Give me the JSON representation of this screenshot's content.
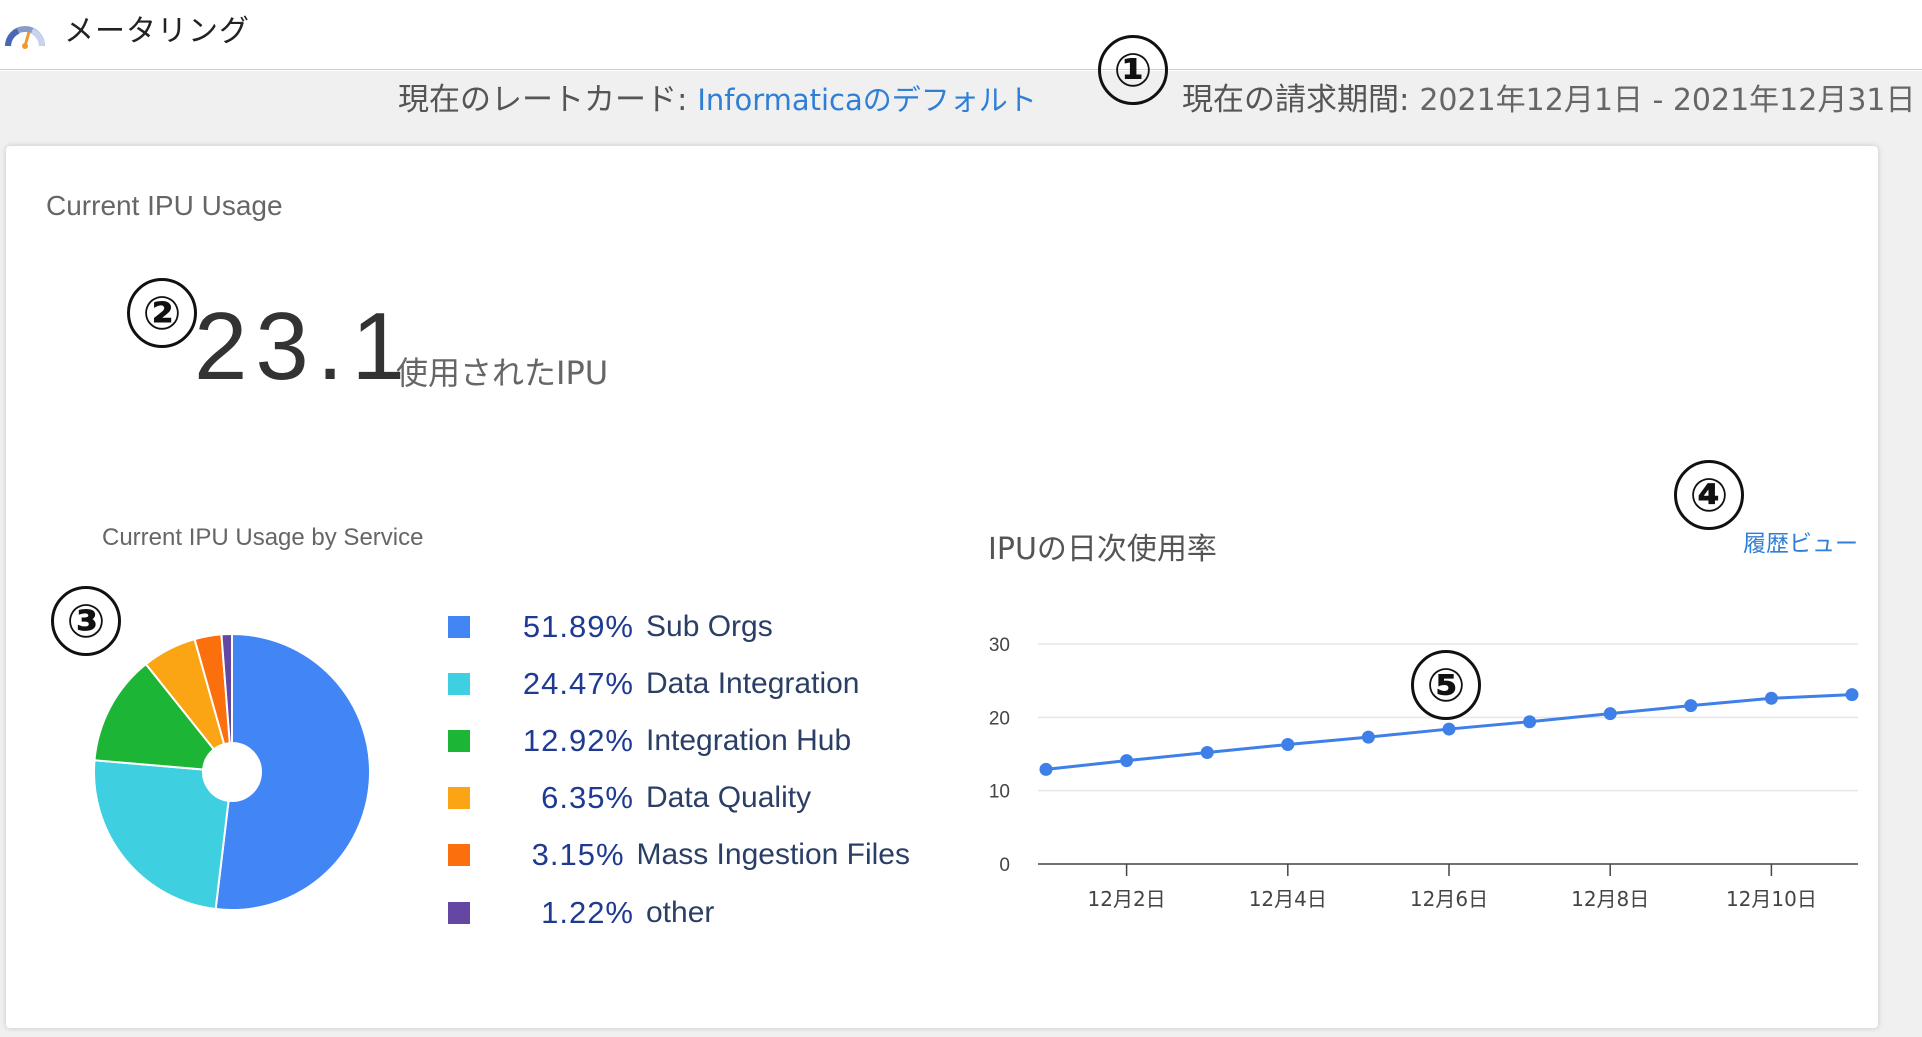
{
  "header": {
    "app_title": "メータリング",
    "app_icon": "gauge-icon"
  },
  "summary": {
    "ratecard_label": "現在のレートカード: ",
    "ratecard_value": "Informaticaのデフォルト",
    "billing_label": "現在の請求期間: ",
    "billing_value": "2021年12月1日 - 2021年12月31日"
  },
  "usage": {
    "heading": "Current IPU Usage",
    "value": "23.1",
    "unit": "使用されたIPU"
  },
  "callouts": [
    "①",
    "②",
    "③",
    "④",
    "⑤"
  ],
  "pie": {
    "heading": "Current IPU Usage by Service",
    "items": [
      {
        "pct": "51.89%",
        "label": "Sub Orgs",
        "value": 51.89,
        "color": "#4285f4"
      },
      {
        "pct": "24.47%",
        "label": "Data Integration",
        "value": 24.47,
        "color": "#3ecfe0"
      },
      {
        "pct": "12.92%",
        "label": "Integration Hub",
        "value": 12.92,
        "color": "#1db536"
      },
      {
        "pct": "6.35%",
        "label": "Data Quality",
        "value": 6.35,
        "color": "#fba414"
      },
      {
        "pct": "3.15%",
        "label": "Mass Ingestion Files",
        "value": 3.15,
        "color": "#fb6f0c"
      },
      {
        "pct": "1.22%",
        "label": "other",
        "value": 1.22,
        "color": "#6347a3"
      }
    ]
  },
  "line": {
    "heading": "IPUの日次使用率",
    "history_link": "履歴ビュー"
  },
  "chart_data": {
    "type": "line",
    "series": [
      {
        "values": [
          12.9,
          14.1,
          15.2,
          16.3,
          17.3,
          18.4,
          19.4,
          20.5,
          21.6,
          22.6,
          23.1
        ]
      }
    ],
    "x": [
      "12月1日",
      "12月2日",
      "12月3日",
      "12月4日",
      "12月5日",
      "12月6日",
      "12月7日",
      "12月8日",
      "12月9日",
      "12月10日",
      "12月11日"
    ],
    "x_tick_labels": [
      "12月2日",
      "12月4日",
      "12月6日",
      "12月8日",
      "12月10日"
    ],
    "y_ticks": [
      "0",
      "10",
      "20",
      "30"
    ],
    "ylim": [
      0,
      30
    ],
    "grid": true,
    "color": "#3f7fe8"
  }
}
